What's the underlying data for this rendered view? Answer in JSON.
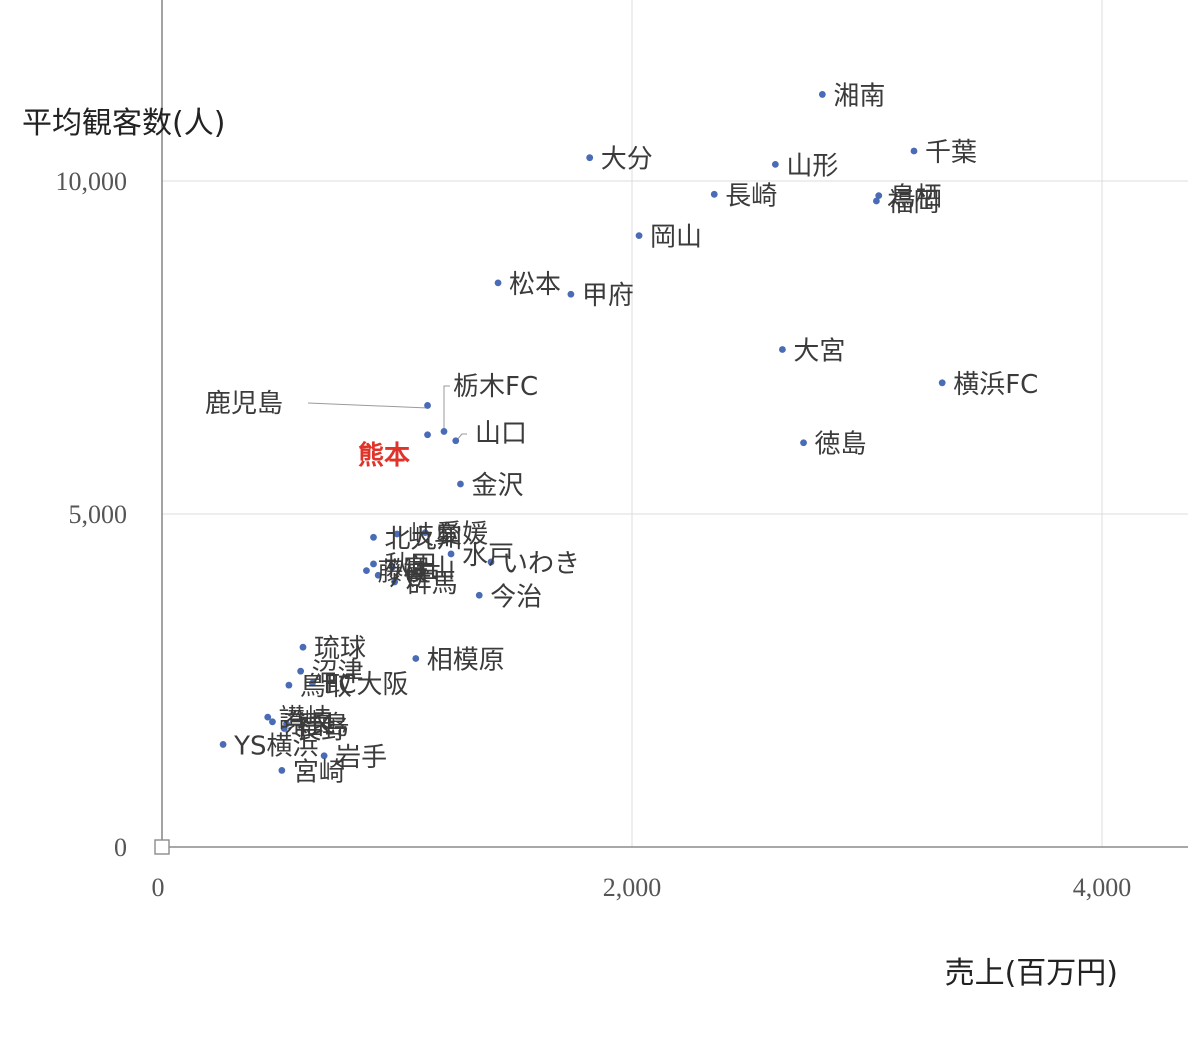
{
  "chart_data": {
    "type": "scatter",
    "xlabel": "売上(百万円)",
    "ylabel": "平均観客数(人)",
    "xlim": [
      0,
      4400
    ],
    "ylim": [
      0,
      12700
    ],
    "x_ticks": [
      {
        "value": 0,
        "label": "0"
      },
      {
        "value": 2000,
        "label": "2,000"
      },
      {
        "value": 4000,
        "label": "4,000"
      }
    ],
    "y_ticks": [
      {
        "value": 0,
        "label": "0"
      },
      {
        "value": 5000,
        "label": "5,000"
      },
      {
        "value": 10000,
        "label": "10,000"
      }
    ],
    "grid": true,
    "highlight_color": "#e0342a",
    "point_color": "#4a6bb5",
    "points": [
      {
        "name": "湘南",
        "x": 2810,
        "y": 11300
      },
      {
        "name": "大分",
        "x": 1820,
        "y": 10350
      },
      {
        "name": "山形",
        "x": 2610,
        "y": 10250
      },
      {
        "name": "千葉",
        "x": 3200,
        "y": 10450
      },
      {
        "name": "長崎",
        "x": 2350,
        "y": 9800
      },
      {
        "name": "鳥栖",
        "x": 3050,
        "y": 9780
      },
      {
        "name": "福岡",
        "x": 3040,
        "y": 9700
      },
      {
        "name": "岡山",
        "x": 2030,
        "y": 9180
      },
      {
        "name": "松本",
        "x": 1430,
        "y": 8470
      },
      {
        "name": "甲府",
        "x": 1740,
        "y": 8300
      },
      {
        "name": "大宮",
        "x": 2640,
        "y": 7470
      },
      {
        "name": "横浜FC",
        "x": 3320,
        "y": 6970
      },
      {
        "name": "栃木FC",
        "x": 1200,
        "y": 6240
      },
      {
        "name": "鹿児島",
        "x": 1130,
        "y": 6630
      },
      {
        "name": "山口",
        "x": 1250,
        "y": 6100
      },
      {
        "name": "熊本",
        "x": 1130,
        "y": 6190,
        "highlight": true
      },
      {
        "name": "徳島",
        "x": 2730,
        "y": 6070
      },
      {
        "name": "金沢",
        "x": 1270,
        "y": 5450
      },
      {
        "name": "愛媛",
        "x": 1120,
        "y": 4720
      },
      {
        "name": "岐阜",
        "x": 1000,
        "y": 4700
      },
      {
        "name": "北九州",
        "x": 900,
        "y": 4650
      },
      {
        "name": "水戸",
        "x": 1230,
        "y": 4400
      },
      {
        "name": "いわき",
        "x": 1400,
        "y": 4280
      },
      {
        "name": "秋田",
        "x": 900,
        "y": 4250
      },
      {
        "name": "藤枝",
        "x": 870,
        "y": 4150
      },
      {
        "name": "富山",
        "x": 980,
        "y": 4200
      },
      {
        "name": "八戸",
        "x": 920,
        "y": 4080
      },
      {
        "name": "群馬",
        "x": 990,
        "y": 3980
      },
      {
        "name": "今治",
        "x": 1350,
        "y": 3780
      },
      {
        "name": "琉球",
        "x": 600,
        "y": 3000
      },
      {
        "name": "相模原",
        "x": 1080,
        "y": 2830
      },
      {
        "name": "沼津",
        "x": 590,
        "y": 2640
      },
      {
        "name": "鳥取",
        "x": 540,
        "y": 2430
      },
      {
        "name": "FC大阪",
        "x": 640,
        "y": 2460
      },
      {
        "name": "讃岐",
        "x": 450,
        "y": 1950
      },
      {
        "name": "奈良",
        "x": 470,
        "y": 1880
      },
      {
        "name": "福島",
        "x": 530,
        "y": 1850
      },
      {
        "name": "長野",
        "x": 520,
        "y": 1780
      },
      {
        "name": "YS横浜",
        "x": 260,
        "y": 1540
      },
      {
        "name": "岩手",
        "x": 690,
        "y": 1370
      },
      {
        "name": "宮崎",
        "x": 510,
        "y": 1150
      }
    ]
  }
}
